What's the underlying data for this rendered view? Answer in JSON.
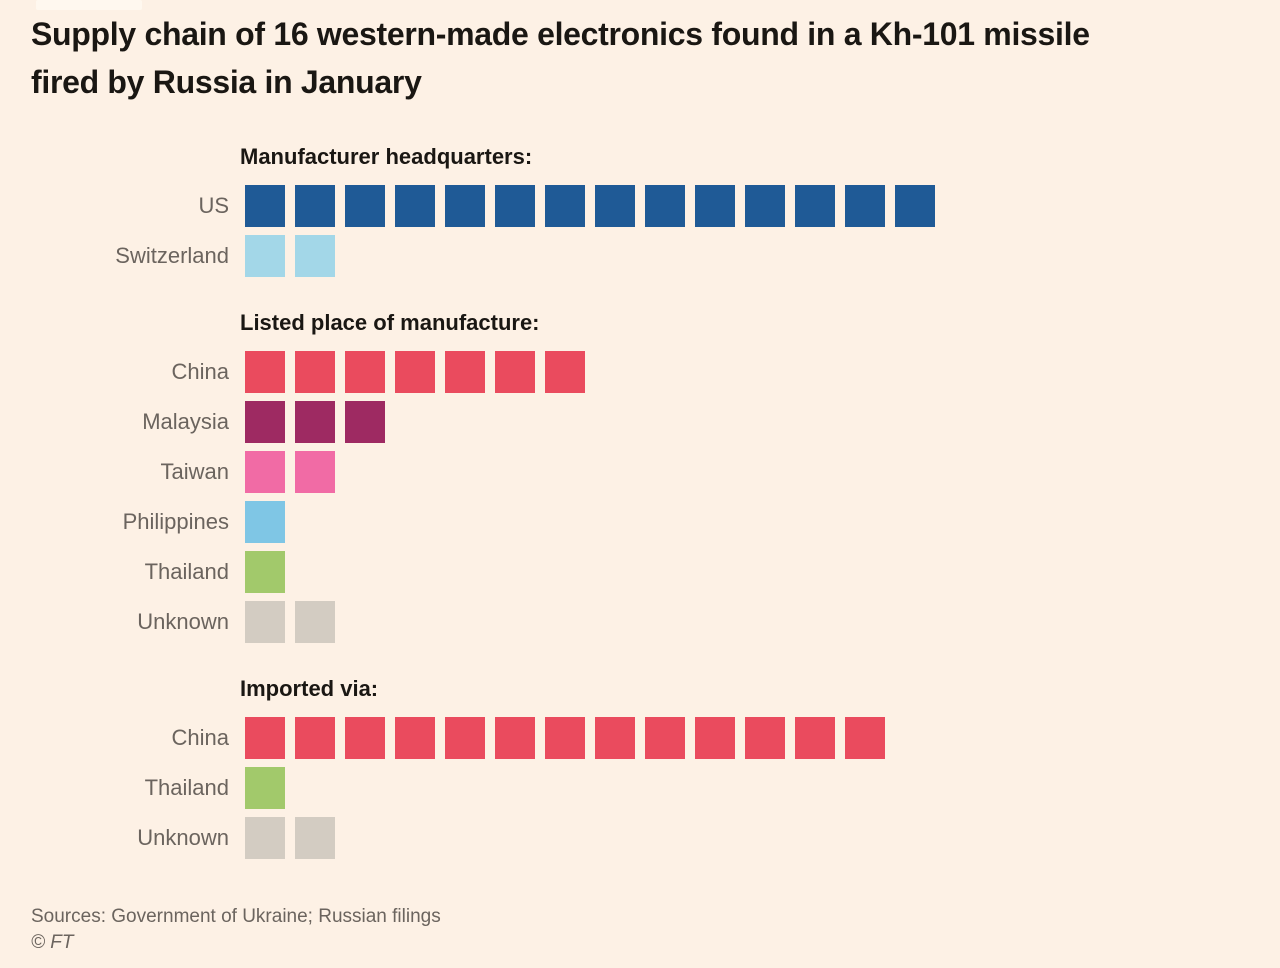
{
  "header": {
    "title": "Supply chain of 16 western-made electronics found in a Kh-101 missile fired by Russia in January",
    "title_lines": [
      "Supply chain of 16 western-made electronics found in a Kh-101 missile",
      "fired by Russia in January"
    ]
  },
  "chart_data": {
    "type": "bar",
    "style": "unit-squares (1 square = 1 component)",
    "total_units": 16,
    "background_color": "#fdf1e5",
    "palette": {
      "us-dark-blue": "#1f5a96",
      "switzerland-light-blue": "#a3d7e8",
      "china-red": "#ea4b5e",
      "malaysia-magenta": "#9e2a62",
      "taiwan-pink": "#f16ba5",
      "philippines-sky-blue": "#7fc6e5",
      "thailand-green": "#a2c96b",
      "unknown-gray": "#d3ccc2"
    },
    "sections": [
      {
        "title": "Manufacturer headquarters:",
        "rows": [
          {
            "label": "US",
            "value": 14,
            "color": "#1f5a96"
          },
          {
            "label": "Switzerland",
            "value": 2,
            "color": "#a3d7e8"
          }
        ]
      },
      {
        "title": "Listed place of manufacture:",
        "rows": [
          {
            "label": "China",
            "value": 7,
            "color": "#ea4b5e"
          },
          {
            "label": "Malaysia",
            "value": 3,
            "color": "#9e2a62"
          },
          {
            "label": "Taiwan",
            "value": 2,
            "color": "#f16ba5"
          },
          {
            "label": "Philippines",
            "value": 1,
            "color": "#7fc6e5"
          },
          {
            "label": "Thailand",
            "value": 1,
            "color": "#a2c96b"
          },
          {
            "label": "Unknown",
            "value": 2,
            "color": "#d3ccc2"
          }
        ]
      },
      {
        "title": "Imported via:",
        "rows": [
          {
            "label": "China",
            "value": 13,
            "color": "#ea4b5e"
          },
          {
            "label": "Thailand",
            "value": 1,
            "color": "#a2c96b"
          },
          {
            "label": "Unknown",
            "value": 2,
            "color": "#d3ccc2"
          }
        ]
      }
    ]
  },
  "footer": {
    "sources": "Sources: Government of Ukraine; Russian filings",
    "copyright": "© FT"
  }
}
